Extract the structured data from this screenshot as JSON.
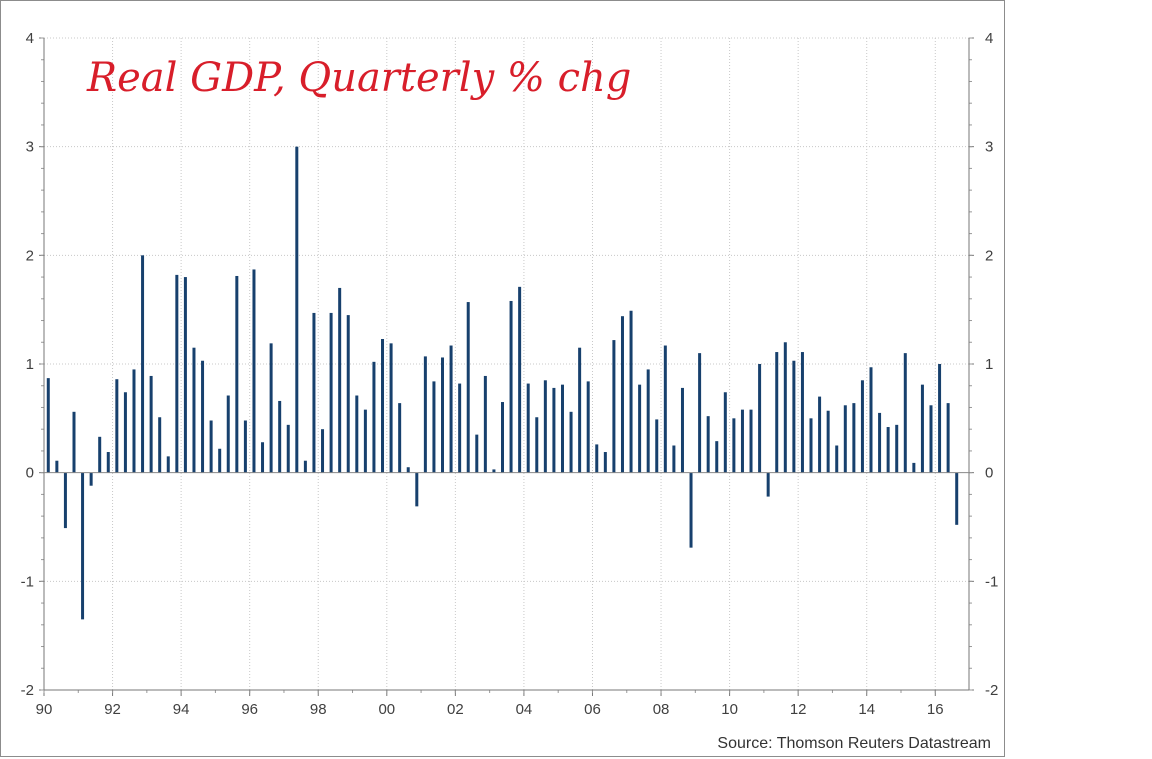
{
  "chart_data": {
    "type": "bar",
    "title": "",
    "annotation": "Real GDP, Quarterly % chg",
    "source": "Source: Thomson Reuters Datastream",
    "xlabel": "",
    "ylabel": "",
    "ylim": [
      -2,
      4
    ],
    "y_ticks": [
      -2,
      -1,
      0,
      1,
      2,
      3,
      4
    ],
    "x_tick_labels": [
      "90",
      "92",
      "94",
      "96",
      "98",
      "00",
      "02",
      "04",
      "06",
      "08",
      "10",
      "12",
      "14",
      "16"
    ],
    "grid": true,
    "bar_color": "#17406d",
    "start": "1990 Q1",
    "frequency": "quarterly",
    "series": [
      {
        "values": [
          0.87,
          0.11,
          -0.51,
          0.56,
          -1.35,
          -0.12,
          0.33,
          0.19,
          0.86,
          0.74,
          0.95,
          2.0,
          0.89,
          0.51,
          0.15,
          1.82,
          1.8,
          1.15,
          1.03,
          0.48,
          0.22,
          0.71,
          1.81,
          0.48,
          1.87,
          0.28,
          1.19,
          0.66,
          0.44,
          3.0,
          0.11,
          1.47,
          0.4,
          1.47,
          1.7,
          1.45,
          0.71,
          0.58,
          1.02,
          1.23,
          1.19,
          0.64,
          0.05,
          -0.31,
          1.07,
          0.84,
          1.06,
          1.17,
          0.82,
          1.57,
          0.35,
          0.89,
          0.03,
          0.65,
          1.58,
          1.71,
          0.82,
          0.51,
          0.85,
          0.78,
          0.81,
          0.56,
          1.15,
          0.84,
          0.26,
          0.19,
          1.22,
          1.44,
          1.49,
          0.81,
          0.95,
          0.49,
          1.17,
          0.25,
          0.78,
          -0.69,
          1.1,
          0.52,
          0.29,
          0.74,
          0.5,
          0.58,
          0.58,
          1.0,
          -0.22,
          1.11,
          1.2,
          1.03,
          1.11,
          0.5,
          0.7,
          0.57,
          0.25,
          0.62,
          0.64,
          0.85,
          0.97,
          0.55,
          0.42,
          0.44,
          1.1,
          0.09,
          0.81,
          0.62,
          1.0,
          0.64,
          -0.48
        ]
      }
    ]
  }
}
